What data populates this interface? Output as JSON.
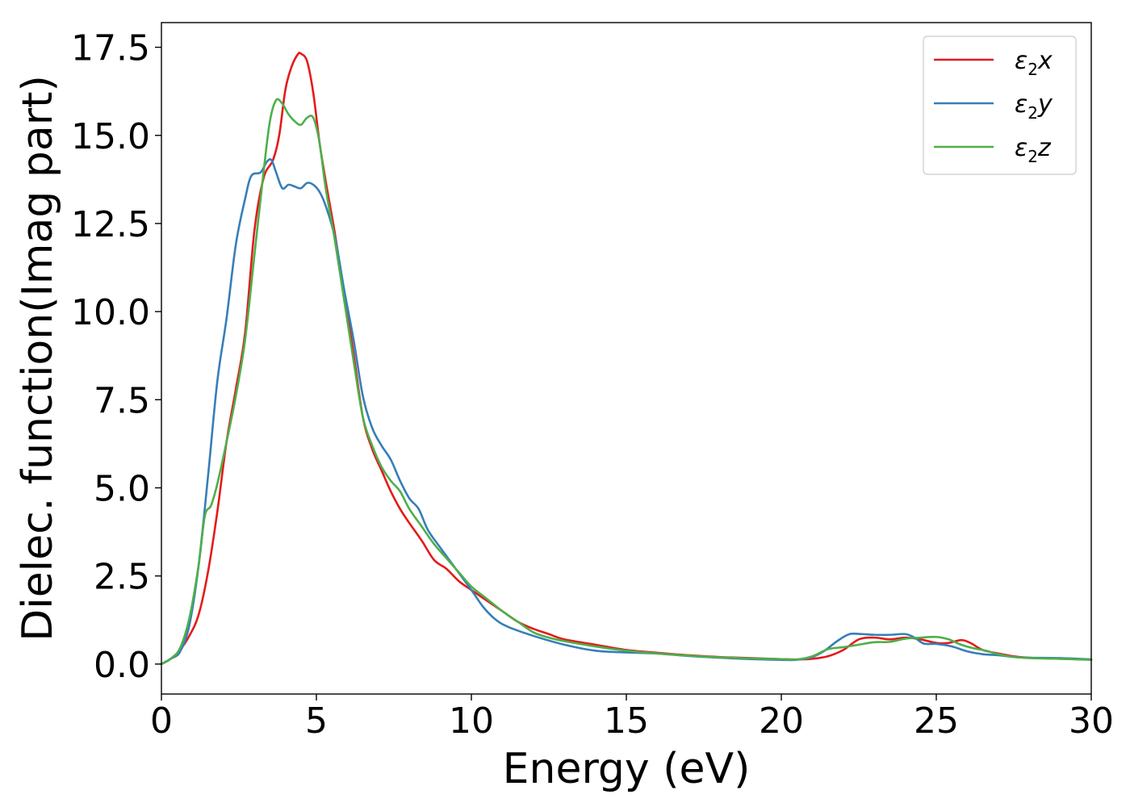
{
  "chart_data": {
    "type": "line",
    "xlabel": "Energy (eV)",
    "ylabel": "Dielec. function(Imag part)",
    "xlim": [
      0,
      30
    ],
    "ylim": [
      -0.85,
      18.2
    ],
    "xticks": [
      0,
      5,
      10,
      15,
      20,
      25,
      30
    ],
    "xtick_labels": [
      "0",
      "5",
      "10",
      "15",
      "20",
      "25",
      "30"
    ],
    "yticks": [
      0.0,
      2.5,
      5.0,
      7.5,
      10.0,
      12.5,
      15.0,
      17.5
    ],
    "ytick_labels": [
      "0.0",
      "2.5",
      "5.0",
      "7.5",
      "10.0",
      "12.5",
      "15.0",
      "17.5"
    ],
    "grid": false,
    "legend_position": "top-right",
    "series": [
      {
        "name": "ε2x",
        "legend": {
          "base": "ε",
          "sub": "2",
          "var": "x"
        },
        "color": "#e41a1c",
        "points": [
          [
            0,
            0
          ],
          [
            0.3,
            0.15
          ],
          [
            0.6,
            0.4
          ],
          [
            0.9,
            0.8
          ],
          [
            1.2,
            1.4
          ],
          [
            1.5,
            2.6
          ],
          [
            1.8,
            4.3
          ],
          [
            2.1,
            6.3
          ],
          [
            2.4,
            7.8
          ],
          [
            2.7,
            9.4
          ],
          [
            3.0,
            12.3
          ],
          [
            3.3,
            13.8
          ],
          [
            3.6,
            14.3
          ],
          [
            3.8,
            15.0
          ],
          [
            4.0,
            16.3
          ],
          [
            4.2,
            16.95
          ],
          [
            4.4,
            17.3
          ],
          [
            4.5,
            17.32
          ],
          [
            4.7,
            17.1
          ],
          [
            4.9,
            16.2
          ],
          [
            5.1,
            14.8
          ],
          [
            5.3,
            13.7
          ],
          [
            5.6,
            12.2
          ],
          [
            5.9,
            10.5
          ],
          [
            6.2,
            8.8
          ],
          [
            6.5,
            7.0
          ],
          [
            6.8,
            6.1
          ],
          [
            7.1,
            5.5
          ],
          [
            7.4,
            4.9
          ],
          [
            7.7,
            4.4
          ],
          [
            8.0,
            4.0
          ],
          [
            8.4,
            3.5
          ],
          [
            8.8,
            2.95
          ],
          [
            9.2,
            2.7
          ],
          [
            9.6,
            2.35
          ],
          [
            10.0,
            2.1
          ],
          [
            10.5,
            1.8
          ],
          [
            11.0,
            1.5
          ],
          [
            11.5,
            1.2
          ],
          [
            12.0,
            1.0
          ],
          [
            12.5,
            0.85
          ],
          [
            13.0,
            0.7
          ],
          [
            14.0,
            0.55
          ],
          [
            15.0,
            0.4
          ],
          [
            16.0,
            0.32
          ],
          [
            17.0,
            0.25
          ],
          [
            18.0,
            0.2
          ],
          [
            19.0,
            0.17
          ],
          [
            20.0,
            0.14
          ],
          [
            20.5,
            0.13
          ],
          [
            21.0,
            0.15
          ],
          [
            21.5,
            0.22
          ],
          [
            22.0,
            0.4
          ],
          [
            22.5,
            0.7
          ],
          [
            23.0,
            0.75
          ],
          [
            23.5,
            0.7
          ],
          [
            24.0,
            0.75
          ],
          [
            24.5,
            0.7
          ],
          [
            25.0,
            0.6
          ],
          [
            25.4,
            0.6
          ],
          [
            25.8,
            0.68
          ],
          [
            26.1,
            0.6
          ],
          [
            26.5,
            0.4
          ],
          [
            27.0,
            0.3
          ],
          [
            27.5,
            0.22
          ],
          [
            28.0,
            0.18
          ],
          [
            29.0,
            0.15
          ],
          [
            30.0,
            0.13
          ]
        ]
      },
      {
        "name": "ε2y",
        "legend": {
          "base": "ε",
          "sub": "2",
          "var": "y"
        },
        "color": "#377eb8",
        "points": [
          [
            0,
            0
          ],
          [
            0.3,
            0.15
          ],
          [
            0.6,
            0.35
          ],
          [
            0.9,
            1.1
          ],
          [
            1.2,
            2.8
          ],
          [
            1.5,
            5.3
          ],
          [
            1.8,
            8.0
          ],
          [
            2.1,
            9.8
          ],
          [
            2.4,
            11.9
          ],
          [
            2.7,
            13.2
          ],
          [
            2.9,
            13.85
          ],
          [
            3.2,
            13.95
          ],
          [
            3.4,
            14.25
          ],
          [
            3.55,
            14.3
          ],
          [
            3.7,
            13.95
          ],
          [
            3.9,
            13.5
          ],
          [
            4.1,
            13.6
          ],
          [
            4.3,
            13.55
          ],
          [
            4.5,
            13.5
          ],
          [
            4.7,
            13.65
          ],
          [
            4.9,
            13.6
          ],
          [
            5.1,
            13.4
          ],
          [
            5.3,
            13.0
          ],
          [
            5.6,
            12.1
          ],
          [
            5.9,
            10.6
          ],
          [
            6.2,
            9.2
          ],
          [
            6.5,
            7.6
          ],
          [
            6.8,
            6.7
          ],
          [
            7.1,
            6.2
          ],
          [
            7.4,
            5.8
          ],
          [
            7.7,
            5.2
          ],
          [
            8.0,
            4.7
          ],
          [
            8.3,
            4.4
          ],
          [
            8.6,
            3.8
          ],
          [
            9.0,
            3.3
          ],
          [
            9.5,
            2.7
          ],
          [
            10.0,
            2.1
          ],
          [
            10.4,
            1.6
          ],
          [
            10.8,
            1.25
          ],
          [
            11.2,
            1.05
          ],
          [
            12.0,
            0.8
          ],
          [
            13.0,
            0.55
          ],
          [
            14.0,
            0.38
          ],
          [
            15.0,
            0.33
          ],
          [
            16.0,
            0.3
          ],
          [
            17.0,
            0.23
          ],
          [
            18.0,
            0.18
          ],
          [
            19.0,
            0.14
          ],
          [
            20.0,
            0.12
          ],
          [
            20.5,
            0.12
          ],
          [
            21.0,
            0.2
          ],
          [
            21.4,
            0.38
          ],
          [
            21.8,
            0.65
          ],
          [
            22.2,
            0.85
          ],
          [
            22.6,
            0.85
          ],
          [
            23.0,
            0.83
          ],
          [
            23.5,
            0.83
          ],
          [
            24.0,
            0.85
          ],
          [
            24.3,
            0.75
          ],
          [
            24.6,
            0.58
          ],
          [
            25.0,
            0.57
          ],
          [
            25.5,
            0.5
          ],
          [
            26.0,
            0.36
          ],
          [
            26.5,
            0.28
          ],
          [
            27.0,
            0.25
          ],
          [
            27.5,
            0.2
          ],
          [
            28.0,
            0.18
          ],
          [
            29.0,
            0.17
          ],
          [
            30.0,
            0.13
          ]
        ]
      },
      {
        "name": "ε2z",
        "legend": {
          "base": "ε",
          "sub": "2",
          "var": "z"
        },
        "color": "#4daf4a",
        "points": [
          [
            0,
            0
          ],
          [
            0.3,
            0.15
          ],
          [
            0.6,
            0.45
          ],
          [
            0.9,
            1.3
          ],
          [
            1.2,
            2.8
          ],
          [
            1.4,
            4.2
          ],
          [
            1.6,
            4.5
          ],
          [
            1.8,
            5.1
          ],
          [
            2.1,
            6.3
          ],
          [
            2.4,
            7.6
          ],
          [
            2.7,
            9.2
          ],
          [
            3.0,
            11.6
          ],
          [
            3.3,
            14.0
          ],
          [
            3.5,
            15.4
          ],
          [
            3.7,
            16.0
          ],
          [
            3.9,
            15.9
          ],
          [
            4.1,
            15.6
          ],
          [
            4.3,
            15.4
          ],
          [
            4.5,
            15.3
          ],
          [
            4.7,
            15.5
          ],
          [
            4.9,
            15.5
          ],
          [
            5.1,
            14.8
          ],
          [
            5.3,
            13.5
          ],
          [
            5.6,
            12.0
          ],
          [
            5.9,
            10.3
          ],
          [
            6.2,
            8.6
          ],
          [
            6.5,
            7.0
          ],
          [
            6.8,
            6.2
          ],
          [
            7.1,
            5.6
          ],
          [
            7.4,
            5.2
          ],
          [
            7.7,
            4.9
          ],
          [
            8.0,
            4.4
          ],
          [
            8.4,
            3.9
          ],
          [
            8.8,
            3.4
          ],
          [
            9.2,
            3.0
          ],
          [
            9.6,
            2.6
          ],
          [
            10.0,
            2.2
          ],
          [
            10.5,
            1.85
          ],
          [
            11.0,
            1.5
          ],
          [
            11.5,
            1.2
          ],
          [
            12.0,
            0.9
          ],
          [
            12.5,
            0.75
          ],
          [
            13.0,
            0.65
          ],
          [
            14.0,
            0.5
          ],
          [
            15.0,
            0.38
          ],
          [
            16.0,
            0.3
          ],
          [
            17.0,
            0.24
          ],
          [
            18.0,
            0.19
          ],
          [
            19.0,
            0.16
          ],
          [
            20.0,
            0.14
          ],
          [
            20.5,
            0.13
          ],
          [
            21.0,
            0.22
          ],
          [
            21.5,
            0.42
          ],
          [
            22.0,
            0.48
          ],
          [
            22.5,
            0.55
          ],
          [
            23.0,
            0.62
          ],
          [
            23.5,
            0.63
          ],
          [
            24.0,
            0.72
          ],
          [
            24.5,
            0.75
          ],
          [
            25.0,
            0.77
          ],
          [
            25.4,
            0.7
          ],
          [
            25.8,
            0.55
          ],
          [
            26.2,
            0.45
          ],
          [
            26.6,
            0.38
          ],
          [
            27.0,
            0.28
          ],
          [
            27.5,
            0.2
          ],
          [
            28.0,
            0.17
          ],
          [
            29.0,
            0.15
          ],
          [
            30.0,
            0.12
          ]
        ]
      }
    ]
  }
}
